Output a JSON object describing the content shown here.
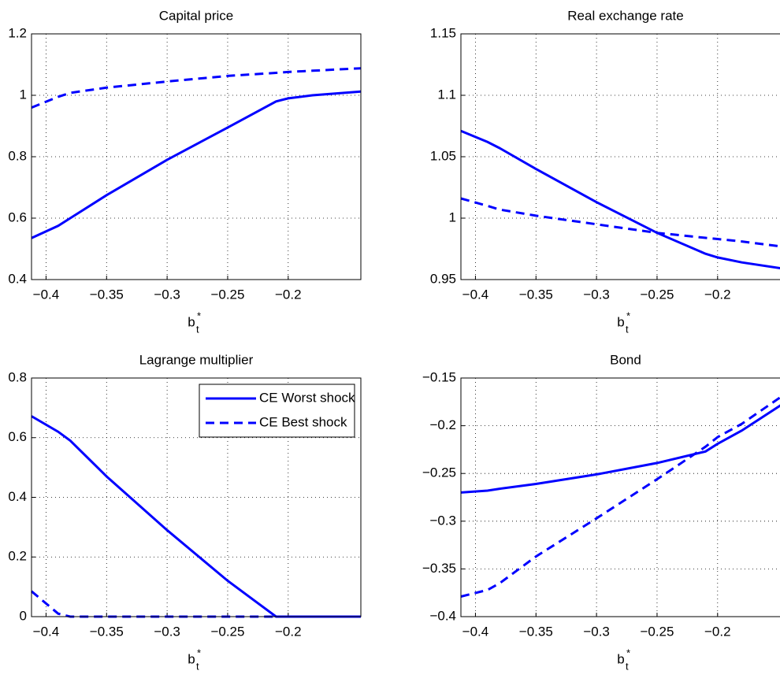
{
  "chart_data": [
    {
      "type": "line",
      "title": "Capital price",
      "xlabel": {
        "base": "b",
        "sub": "t",
        "sup": "*"
      },
      "x": [
        -0.412,
        -0.39,
        -0.38,
        -0.35,
        -0.3,
        -0.25,
        -0.21,
        -0.2,
        -0.18,
        -0.14
      ],
      "xlim": [
        -0.412,
        -0.14
      ],
      "xticks": [
        {
          "value": -0.4,
          "label": "−0.4"
        },
        {
          "value": -0.35,
          "label": "−0.35"
        },
        {
          "value": -0.3,
          "label": "−0.3"
        },
        {
          "value": -0.25,
          "label": "−0.25"
        },
        {
          "value": -0.2,
          "label": "−0.2"
        }
      ],
      "ylim": [
        0.4,
        1.2
      ],
      "yticks": [
        0.4,
        0.6,
        0.8,
        1,
        1.2
      ],
      "grid": true,
      "series": [
        {
          "name": "CE Worst shock",
          "color": "#0000ff",
          "dashed": false,
          "values": [
            0.535,
            0.575,
            0.6,
            0.675,
            0.79,
            0.895,
            0.98,
            0.99,
            1.0,
            1.012
          ]
        },
        {
          "name": "CE Best shock",
          "color": "#0000ff",
          "dashed": true,
          "values": [
            0.96,
            0.995,
            1.008,
            1.025,
            1.045,
            1.063,
            1.073,
            1.076,
            1.08,
            1.088
          ]
        }
      ]
    },
    {
      "type": "line",
      "title": "Real exchange rate",
      "xlabel": {
        "base": "b",
        "sub": "t",
        "sup": "*"
      },
      "x": [
        -0.412,
        -0.39,
        -0.38,
        -0.35,
        -0.3,
        -0.25,
        -0.21,
        -0.2,
        -0.18,
        -0.14
      ],
      "xlim": [
        -0.412,
        -0.14
      ],
      "xticks": [
        {
          "value": -0.4,
          "label": "−0.4"
        },
        {
          "value": -0.35,
          "label": "−0.35"
        },
        {
          "value": -0.3,
          "label": "−0.3"
        },
        {
          "value": -0.25,
          "label": "−0.25"
        },
        {
          "value": -0.2,
          "label": "−0.2"
        }
      ],
      "ylim": [
        0.95,
        1.15
      ],
      "yticks": [
        0.95,
        1,
        1.05,
        1.1,
        1.15
      ],
      "grid": true,
      "series": [
        {
          "name": "CE Worst shock",
          "color": "#0000ff",
          "dashed": false,
          "values": [
            1.071,
            1.062,
            1.057,
            1.04,
            1.013,
            0.988,
            0.971,
            0.968,
            0.964,
            0.958
          ]
        },
        {
          "name": "CE Best shock",
          "color": "#0000ff",
          "dashed": true,
          "values": [
            1.016,
            1.01,
            1.007,
            1.002,
            0.995,
            0.988,
            0.984,
            0.983,
            0.981,
            0.976
          ]
        }
      ]
    },
    {
      "type": "line",
      "title": "Lagrange multiplier",
      "xlabel": {
        "base": "b",
        "sub": "t",
        "sup": "*"
      },
      "x": [
        -0.412,
        -0.39,
        -0.38,
        -0.35,
        -0.3,
        -0.25,
        -0.21,
        -0.2,
        -0.18,
        -0.14
      ],
      "xlim": [
        -0.412,
        -0.14
      ],
      "xticks": [
        {
          "value": -0.4,
          "label": "−0.4"
        },
        {
          "value": -0.35,
          "label": "−0.35"
        },
        {
          "value": -0.3,
          "label": "−0.3"
        },
        {
          "value": -0.25,
          "label": "−0.25"
        },
        {
          "value": -0.2,
          "label": "−0.2"
        }
      ],
      "ylim": [
        0,
        0.8
      ],
      "yticks": [
        0,
        0.2,
        0.4,
        0.6,
        0.8
      ],
      "grid": true,
      "legend": "upper right",
      "series": [
        {
          "name": "CE Worst shock",
          "color": "#0000ff",
          "dashed": false,
          "values": [
            0.672,
            0.62,
            0.59,
            0.47,
            0.29,
            0.12,
            0,
            0,
            0,
            0
          ]
        },
        {
          "name": "CE Best shock",
          "color": "#0000ff",
          "dashed": true,
          "values": [
            0.085,
            0.01,
            0,
            0,
            0,
            0,
            0,
            0,
            0,
            0
          ]
        }
      ]
    },
    {
      "type": "line",
      "title": "Bond",
      "xlabel": {
        "base": "b",
        "sub": "t",
        "sup": "*"
      },
      "x": [
        -0.412,
        -0.39,
        -0.38,
        -0.35,
        -0.3,
        -0.25,
        -0.21,
        -0.2,
        -0.18,
        -0.14
      ],
      "xlim": [
        -0.412,
        -0.14
      ],
      "xticks": [
        {
          "value": -0.4,
          "label": "−0.4"
        },
        {
          "value": -0.35,
          "label": "−0.35"
        },
        {
          "value": -0.3,
          "label": "−0.3"
        },
        {
          "value": -0.25,
          "label": "−0.25"
        },
        {
          "value": -0.2,
          "label": "−0.2"
        }
      ],
      "ylim": [
        -0.4,
        -0.15
      ],
      "yticks": [
        {
          "value": -0.4,
          "label": "−0.4"
        },
        {
          "value": -0.35,
          "label": "−0.35"
        },
        {
          "value": -0.3,
          "label": "−0.3"
        },
        {
          "value": -0.25,
          "label": "−0.25"
        },
        {
          "value": -0.2,
          "label": "−0.2"
        },
        {
          "value": -0.15,
          "label": "−0.15"
        }
      ],
      "grid": true,
      "series": [
        {
          "name": "CE Worst shock",
          "color": "#0000ff",
          "dashed": false,
          "values": [
            -0.27,
            -0.268,
            -0.266,
            -0.261,
            -0.251,
            -0.239,
            -0.227,
            -0.219,
            -0.205,
            -0.172
          ]
        },
        {
          "name": "CE Best shock",
          "color": "#0000ff",
          "dashed": true,
          "values": [
            -0.379,
            -0.372,
            -0.365,
            -0.337,
            -0.297,
            -0.256,
            -0.222,
            -0.212,
            -0.198,
            -0.163
          ]
        }
      ]
    }
  ]
}
